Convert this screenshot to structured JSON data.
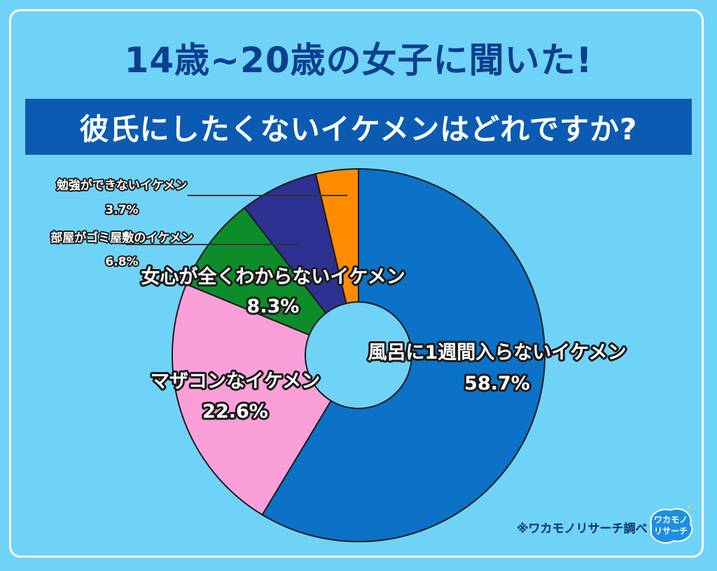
{
  "header": {
    "title": "14歳~20歳の女子に聞いた!",
    "subtitle": "彼氏にしたくないイケメンはどれですか?"
  },
  "chart_data": {
    "type": "pie",
    "donut": true,
    "title": "彼氏にしたくないイケメンはどれですか?",
    "slices": [
      {
        "label": "風呂に1週間入らないイケメン",
        "value": 58.7,
        "value_label": "58.7%",
        "color": "#0b72c7"
      },
      {
        "label": "マザコンなイケメン",
        "value": 22.6,
        "value_label": "22.6%",
        "color": "#fb9fd9"
      },
      {
        "label": "女心が全くわからないイケメン",
        "value": 8.3,
        "value_label": "8.3%",
        "color": "#0d8d2a"
      },
      {
        "label": "部屋がゴミ屋敷のイケメン",
        "value": 6.8,
        "value_label": "6.8%",
        "color": "#2e3191"
      },
      {
        "label": "勉強ができないイケメン",
        "value": 3.7,
        "value_label": "3.7%",
        "color": "#ff8c00"
      }
    ]
  },
  "footer": {
    "source": "※ワカモノリサーチ調べ",
    "logo_text_1": "ワカモノ",
    "logo_text_2": "リサーチ"
  }
}
